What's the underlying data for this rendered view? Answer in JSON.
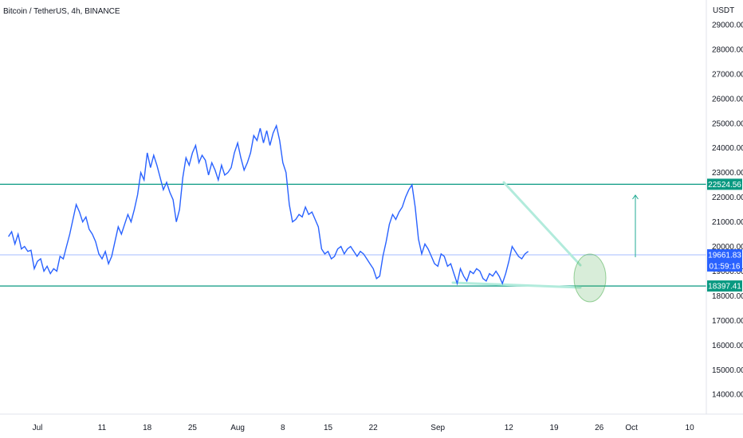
{
  "chart_data": {
    "type": "line",
    "title": "Bitcoin / TetherUS, 4h, BINANCE",
    "currency": "USDT",
    "ylim": [
      13200,
      30000
    ],
    "y_ticks": [
      "14000.00",
      "15000.00",
      "16000.00",
      "17000.00",
      "18000.00",
      "19000.00",
      "20000.00",
      "21000.00",
      "22000.00",
      "23000.00",
      "24000.00",
      "25000.00",
      "26000.00",
      "27000.00",
      "28000.00",
      "29000.00"
    ],
    "x_ticks": [
      {
        "label": "Jul",
        "day": 0
      },
      {
        "label": "11",
        "day": 10
      },
      {
        "label": "18",
        "day": 17
      },
      {
        "label": "25",
        "day": 24
      },
      {
        "label": "Aug",
        "day": 31
      },
      {
        "label": "8",
        "day": 38
      },
      {
        "label": "15",
        "day": 45
      },
      {
        "label": "22",
        "day": 52
      },
      {
        "label": "Sep",
        "day": 62
      },
      {
        "label": "12",
        "day": 73
      },
      {
        "label": "19",
        "day": 80
      },
      {
        "label": "26",
        "day": 87
      },
      {
        "label": "Oct",
        "day": 92
      },
      {
        "label": "10",
        "day": 101
      }
    ],
    "series": [
      {
        "color": "#2962ff",
        "points": [
          [
            -4.5,
            20400
          ],
          [
            -4,
            20600
          ],
          [
            -3.5,
            20100
          ],
          [
            -3,
            20500
          ],
          [
            -2.5,
            19900
          ],
          [
            -2,
            20000
          ],
          [
            -1.5,
            19800
          ],
          [
            -1,
            19850
          ],
          [
            -0.5,
            19100
          ],
          [
            0,
            19400
          ],
          [
            0.5,
            19500
          ],
          [
            1,
            19000
          ],
          [
            1.5,
            19200
          ],
          [
            2,
            18900
          ],
          [
            2.5,
            19100
          ],
          [
            3,
            19000
          ],
          [
            3.5,
            19600
          ],
          [
            4,
            19500
          ],
          [
            4.5,
            20000
          ],
          [
            5,
            20500
          ],
          [
            5.5,
            21100
          ],
          [
            6,
            21700
          ],
          [
            6.5,
            21400
          ],
          [
            7,
            21000
          ],
          [
            7.5,
            21200
          ],
          [
            8,
            20700
          ],
          [
            8.5,
            20500
          ],
          [
            9,
            20200
          ],
          [
            9.5,
            19700
          ],
          [
            10,
            19500
          ],
          [
            10.5,
            19800
          ],
          [
            11,
            19300
          ],
          [
            11.5,
            19600
          ],
          [
            12,
            20200
          ],
          [
            12.5,
            20800
          ],
          [
            13,
            20500
          ],
          [
            13.5,
            20900
          ],
          [
            14,
            21300
          ],
          [
            14.5,
            21000
          ],
          [
            15,
            21500
          ],
          [
            15.5,
            22100
          ],
          [
            16,
            23000
          ],
          [
            16.5,
            22700
          ],
          [
            17,
            23800
          ],
          [
            17.5,
            23200
          ],
          [
            18,
            23700
          ],
          [
            18.5,
            23300
          ],
          [
            19,
            22800
          ],
          [
            19.5,
            22300
          ],
          [
            20,
            22600
          ],
          [
            20.5,
            22200
          ],
          [
            21,
            21900
          ],
          [
            21.5,
            21000
          ],
          [
            22,
            21500
          ],
          [
            22.5,
            22800
          ],
          [
            23,
            23600
          ],
          [
            23.5,
            23300
          ],
          [
            24,
            23800
          ],
          [
            24.5,
            24100
          ],
          [
            25,
            23400
          ],
          [
            25.5,
            23700
          ],
          [
            26,
            23500
          ],
          [
            26.5,
            22900
          ],
          [
            27,
            23400
          ],
          [
            27.5,
            23100
          ],
          [
            28,
            22700
          ],
          [
            28.5,
            23300
          ],
          [
            29,
            22900
          ],
          [
            29.5,
            23000
          ],
          [
            30,
            23200
          ],
          [
            30.5,
            23800
          ],
          [
            31,
            24200
          ],
          [
            31.5,
            23600
          ],
          [
            32,
            23100
          ],
          [
            32.5,
            23400
          ],
          [
            33,
            23800
          ],
          [
            33.5,
            24500
          ],
          [
            34,
            24300
          ],
          [
            34.5,
            24800
          ],
          [
            35,
            24200
          ],
          [
            35.5,
            24700
          ],
          [
            36,
            24100
          ],
          [
            36.5,
            24600
          ],
          [
            37,
            24900
          ],
          [
            37.5,
            24300
          ],
          [
            38,
            23400
          ],
          [
            38.5,
            23000
          ],
          [
            39,
            21700
          ],
          [
            39.5,
            21000
          ],
          [
            40,
            21100
          ],
          [
            40.5,
            21300
          ],
          [
            41,
            21200
          ],
          [
            41.5,
            21600
          ],
          [
            42,
            21300
          ],
          [
            42.5,
            21400
          ],
          [
            43,
            21100
          ],
          [
            43.5,
            20800
          ],
          [
            44,
            19900
          ],
          [
            44.5,
            19700
          ],
          [
            45,
            19800
          ],
          [
            45.5,
            19500
          ],
          [
            46,
            19600
          ],
          [
            46.5,
            19900
          ],
          [
            47,
            20000
          ],
          [
            47.5,
            19700
          ],
          [
            48,
            19900
          ],
          [
            48.5,
            20000
          ],
          [
            49,
            19800
          ],
          [
            49.5,
            19600
          ],
          [
            50,
            19800
          ],
          [
            50.5,
            19700
          ],
          [
            51,
            19500
          ],
          [
            51.5,
            19300
          ],
          [
            52,
            19100
          ],
          [
            52.5,
            18700
          ],
          [
            53,
            18800
          ],
          [
            53.5,
            19600
          ],
          [
            54,
            20200
          ],
          [
            54.5,
            20900
          ],
          [
            55,
            21300
          ],
          [
            55.5,
            21100
          ],
          [
            56,
            21400
          ],
          [
            56.5,
            21600
          ],
          [
            57,
            22000
          ],
          [
            57.5,
            22300
          ],
          [
            58,
            22500
          ],
          [
            58.5,
            21600
          ],
          [
            59,
            20300
          ],
          [
            59.5,
            19700
          ],
          [
            60,
            20100
          ],
          [
            60.5,
            19900
          ],
          [
            61,
            19600
          ],
          [
            61.5,
            19300
          ],
          [
            62,
            19200
          ],
          [
            62.5,
            19700
          ],
          [
            63,
            19600
          ],
          [
            63.5,
            19200
          ],
          [
            64,
            19300
          ],
          [
            64.5,
            18900
          ],
          [
            65,
            18500
          ],
          [
            65.5,
            19100
          ],
          [
            66,
            18800
          ],
          [
            66.5,
            18600
          ],
          [
            67,
            19000
          ],
          [
            67.5,
            18900
          ],
          [
            68,
            19100
          ],
          [
            68.5,
            19000
          ],
          [
            69,
            18700
          ],
          [
            69.5,
            18600
          ],
          [
            70,
            18900
          ],
          [
            70.5,
            18800
          ],
          [
            71,
            19000
          ],
          [
            71.5,
            18800
          ],
          [
            72,
            18500
          ],
          [
            72.5,
            18900
          ],
          [
            73,
            19400
          ],
          [
            73.5,
            20000
          ],
          [
            74,
            19800
          ],
          [
            74.5,
            19600
          ],
          [
            75,
            19500
          ],
          [
            75.5,
            19700
          ],
          [
            76,
            19800
          ]
        ]
      }
    ],
    "levels": [
      {
        "value": 22524.56,
        "label": "22524.56",
        "color": "#089981"
      },
      {
        "value": 18397.41,
        "label": "18397.41",
        "color": "#089981"
      },
      {
        "value": 19661.83,
        "label": "19661.83",
        "color": "#2962ff"
      }
    ],
    "last_price": {
      "value": 19661.83,
      "label": "19661.83",
      "countdown": "01:59:16",
      "color": "#2962ff"
    },
    "annotations": {
      "trend_color": "#b2ebdc",
      "arrow_color": "#22ab94",
      "circle_color": "#4caf50"
    }
  }
}
